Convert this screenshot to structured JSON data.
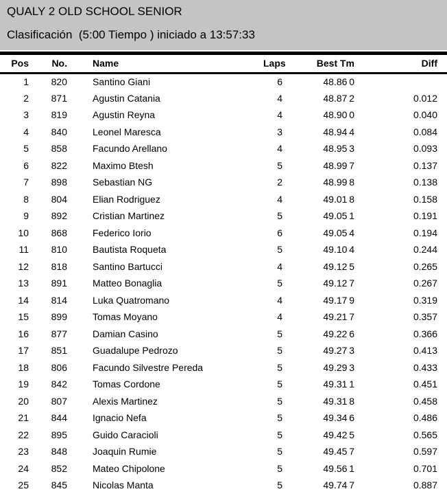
{
  "page": {
    "title": "QUALY 2 OLD SCHOOL SENIOR",
    "subtitle": "Clasificación  (5:00 Tiempo ) iniciado a 13:57:33",
    "session_name": "QUALY 2 OLD SCHOOL SENIOR",
    "session_type": "Clasificación",
    "session_duration": "5:00 Tiempo",
    "start_time": "13:57:33"
  },
  "colors": {
    "header_bg": "#c4c4c4",
    "divider": "#000000",
    "text": "#000000"
  },
  "table": {
    "columns": [
      "Pos",
      "No.",
      "Name",
      "Laps",
      "Best Tm",
      "Diff"
    ],
    "rows": [
      {
        "pos": "1",
        "no": "820",
        "name": "Santino Giani",
        "laps": "6",
        "best_tm": "48.860",
        "diff": ""
      },
      {
        "pos": "2",
        "no": "871",
        "name": "Agustin Catania",
        "laps": "4",
        "best_tm": "48.872",
        "diff": "0.012"
      },
      {
        "pos": "3",
        "no": "819",
        "name": "Agustin Reyna",
        "laps": "4",
        "best_tm": "48.900",
        "diff": "0.040"
      },
      {
        "pos": "4",
        "no": "840",
        "name": "Leonel Maresca",
        "laps": "3",
        "best_tm": "48.944",
        "diff": "0.084"
      },
      {
        "pos": "5",
        "no": "858",
        "name": "Facundo Arellano",
        "laps": "4",
        "best_tm": "48.953",
        "diff": "0.093"
      },
      {
        "pos": "6",
        "no": "822",
        "name": "Maximo Btesh",
        "laps": "5",
        "best_tm": "48.997",
        "diff": "0.137"
      },
      {
        "pos": "7",
        "no": "898",
        "name": "Sebastian NG",
        "laps": "2",
        "best_tm": "48.998",
        "diff": "0.138"
      },
      {
        "pos": "8",
        "no": "804",
        "name": "Elian Rodriguez",
        "laps": "4",
        "best_tm": "49.018",
        "diff": "0.158"
      },
      {
        "pos": "9",
        "no": "892",
        "name": "Cristian Martinez",
        "laps": "5",
        "best_tm": "49.051",
        "diff": "0.191"
      },
      {
        "pos": "10",
        "no": "868",
        "name": "Federico Iorio",
        "laps": "6",
        "best_tm": "49.054",
        "diff": "0.194"
      },
      {
        "pos": "11",
        "no": "810",
        "name": "Bautista Roqueta",
        "laps": "5",
        "best_tm": "49.104",
        "diff": "0.244"
      },
      {
        "pos": "12",
        "no": "818",
        "name": "Santino Bartucci",
        "laps": "4",
        "best_tm": "49.125",
        "diff": "0.265"
      },
      {
        "pos": "13",
        "no": "891",
        "name": "Matteo Bonaglia",
        "laps": "5",
        "best_tm": "49.127",
        "diff": "0.267"
      },
      {
        "pos": "14",
        "no": "814",
        "name": "Luka Quatromano",
        "laps": "4",
        "best_tm": "49.179",
        "diff": "0.319"
      },
      {
        "pos": "15",
        "no": "899",
        "name": "Tomas Moyano",
        "laps": "4",
        "best_tm": "49.217",
        "diff": "0.357"
      },
      {
        "pos": "16",
        "no": "877",
        "name": "Damian Casino",
        "laps": "5",
        "best_tm": "49.226",
        "diff": "0.366"
      },
      {
        "pos": "17",
        "no": "851",
        "name": "Guadalupe Pedrozo",
        "laps": "5",
        "best_tm": "49.273",
        "diff": "0.413"
      },
      {
        "pos": "18",
        "no": "806",
        "name": "Facundo Silvestre Pereda",
        "laps": "5",
        "best_tm": "49.293",
        "diff": "0.433"
      },
      {
        "pos": "19",
        "no": "842",
        "name": "Tomas Cordone",
        "laps": "5",
        "best_tm": "49.311",
        "diff": "0.451"
      },
      {
        "pos": "20",
        "no": "807",
        "name": "Alexis Martinez",
        "laps": "5",
        "best_tm": "49.318",
        "diff": "0.458"
      },
      {
        "pos": "21",
        "no": "844",
        "name": "Ignacio Nefa",
        "laps": "5",
        "best_tm": "49.346",
        "diff": "0.486"
      },
      {
        "pos": "22",
        "no": "895",
        "name": "Guido Caracioli",
        "laps": "5",
        "best_tm": "49.425",
        "diff": "0.565"
      },
      {
        "pos": "23",
        "no": "848",
        "name": "Joaquin Rumie",
        "laps": "5",
        "best_tm": "49.457",
        "diff": "0.597"
      },
      {
        "pos": "24",
        "no": "852",
        "name": "Mateo Chipolone",
        "laps": "5",
        "best_tm": "49.561",
        "diff": "0.701"
      },
      {
        "pos": "25",
        "no": "845",
        "name": "Nicolas Manta",
        "laps": "5",
        "best_tm": "49.747",
        "diff": "0.887"
      }
    ]
  }
}
